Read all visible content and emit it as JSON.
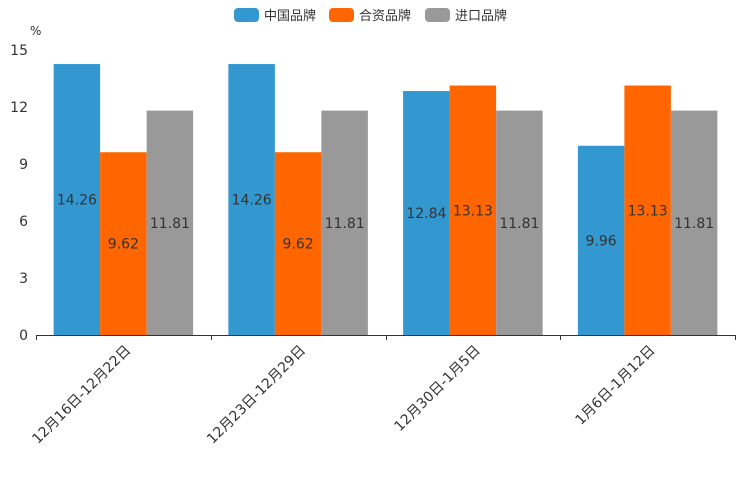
{
  "chart_data": {
    "type": "bar",
    "unit": "%",
    "categories": [
      "12月16日-12月22日",
      "12月23日-12月29日",
      "12月30日-1月5日",
      "1月6日-1月12日"
    ],
    "series": [
      {
        "name": "中国品牌",
        "color": "#3398d0",
        "values": [
          14.26,
          14.26,
          12.84,
          9.96
        ]
      },
      {
        "name": "合资品牌",
        "color": "#ff6600",
        "values": [
          9.62,
          9.62,
          13.13,
          13.13
        ]
      },
      {
        "name": "进口品牌",
        "color": "#999999",
        "values": [
          11.81,
          11.81,
          11.81,
          11.81
        ]
      }
    ],
    "ylim": [
      0,
      15
    ],
    "yticks": [
      "0",
      "3",
      "6",
      "9",
      "12",
      "15"
    ],
    "legend_position": "top-center",
    "grid": false
  }
}
